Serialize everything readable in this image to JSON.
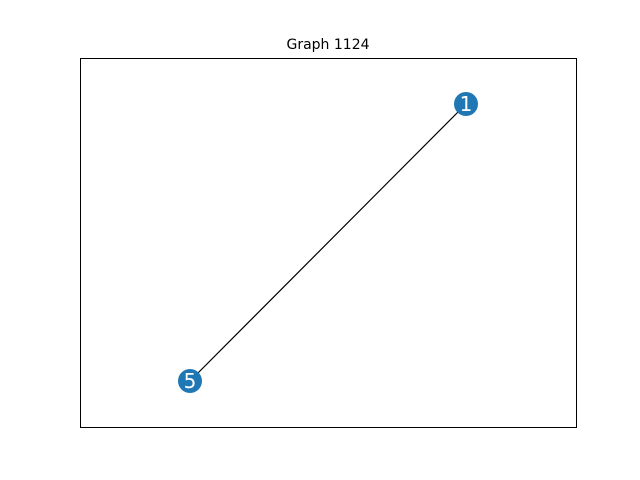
{
  "title": "Graph 1124",
  "colors": {
    "node_fill": "#1f77b4",
    "node_label": "#ffffff",
    "edge": "#000000",
    "frame": "#000000",
    "background": "#ffffff"
  },
  "graph": {
    "nodes": [
      {
        "id": "1",
        "label": "1"
      },
      {
        "id": "5",
        "label": "5"
      }
    ],
    "edges": [
      {
        "source": "1",
        "target": "5"
      }
    ]
  }
}
